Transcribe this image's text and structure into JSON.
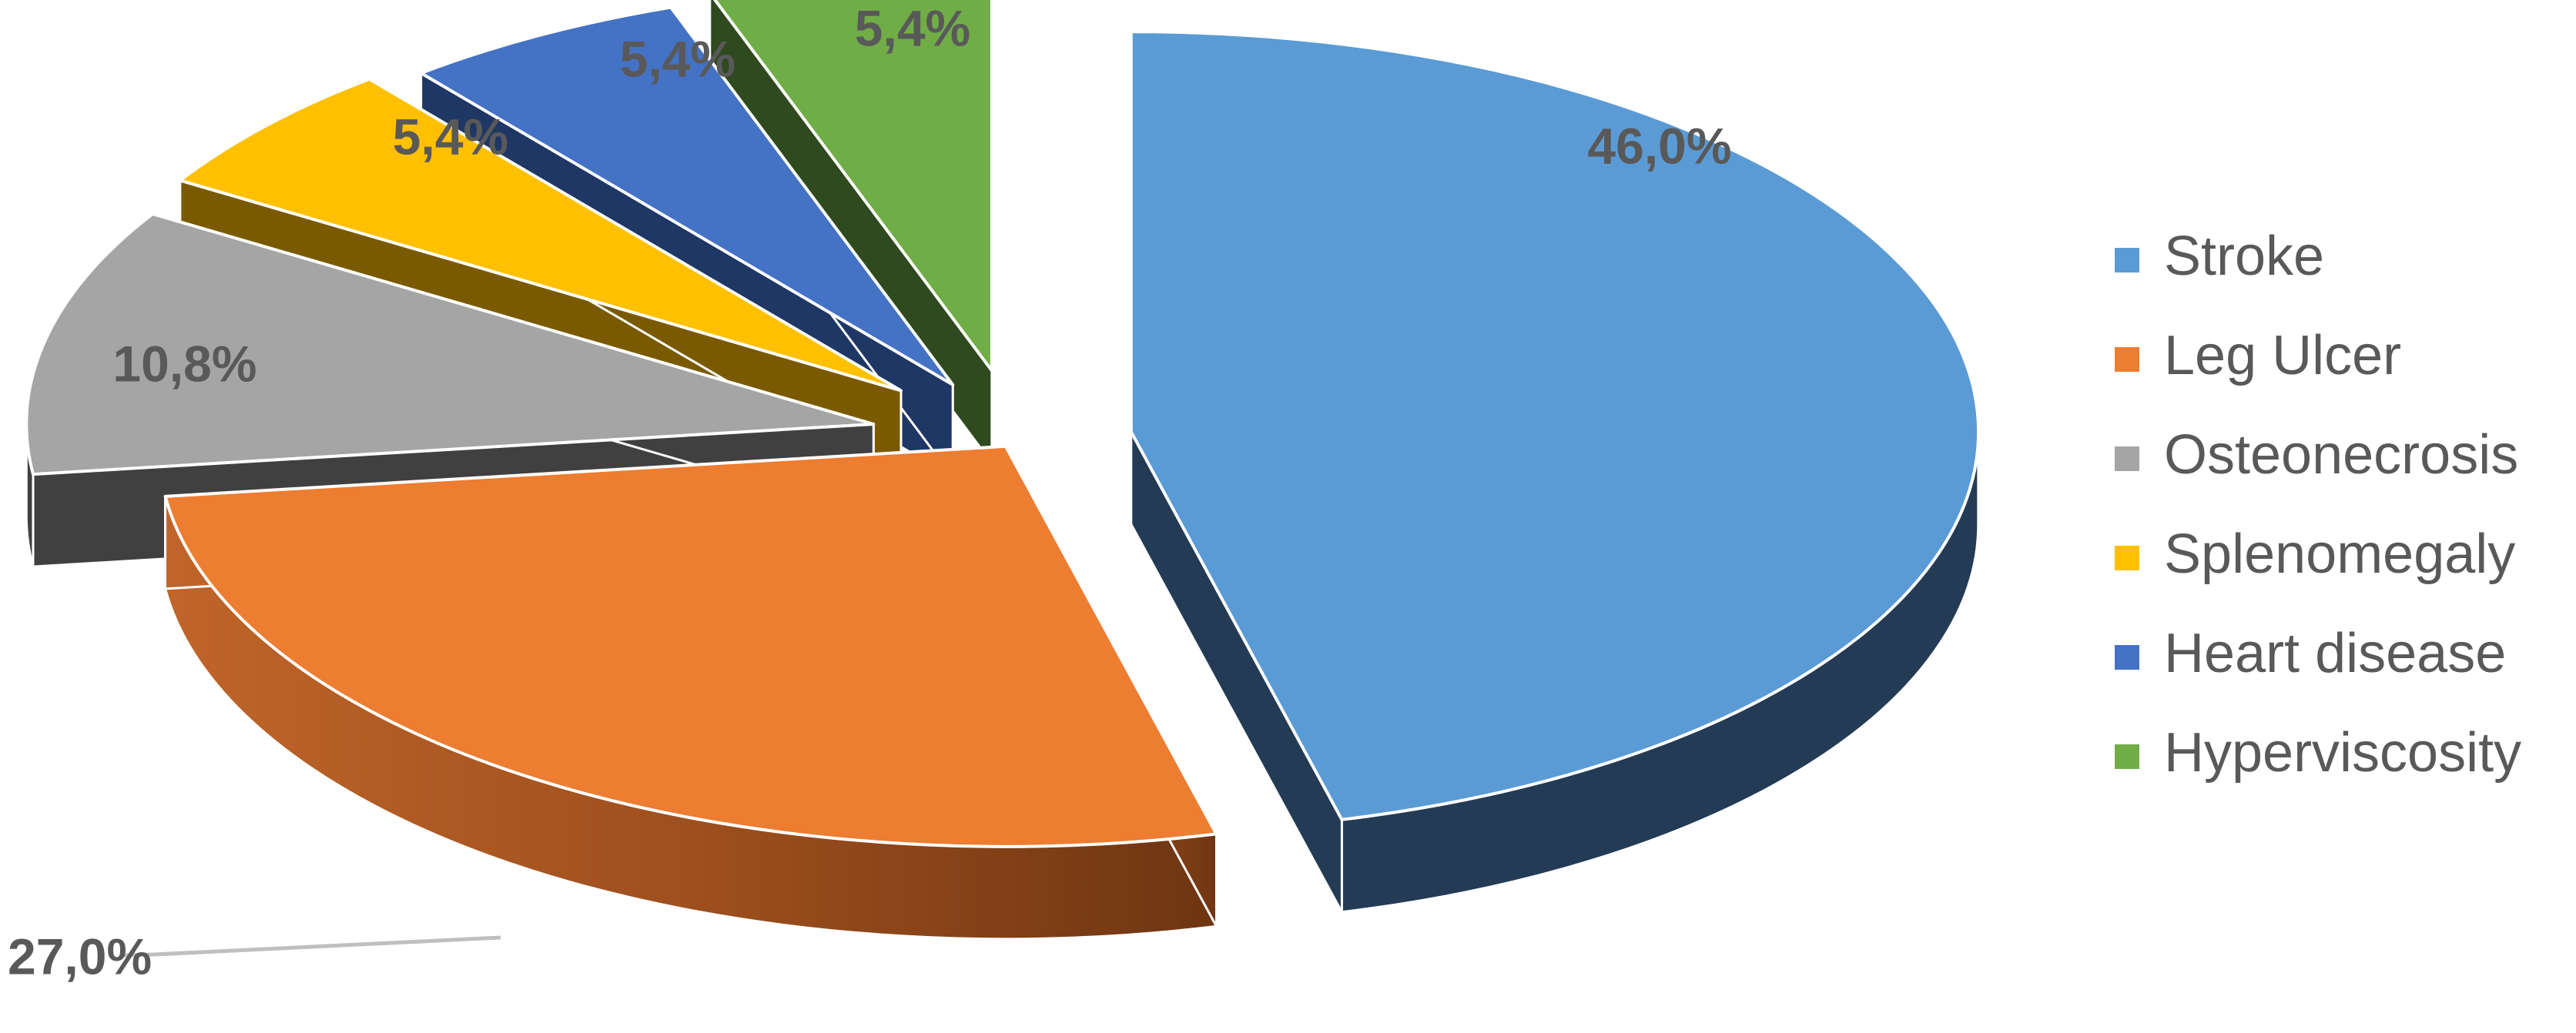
{
  "chart_data": {
    "type": "pie",
    "style": "3d-exploded",
    "categories": [
      "Stroke",
      "Leg Ulcer",
      "Osteonecrosis",
      "Splenomegaly",
      "Heart disease",
      "Hyperviscosity"
    ],
    "values": [
      46.0,
      27.0,
      10.8,
      5.4,
      5.4,
      5.4
    ],
    "labels": [
      "46,0%",
      "27,0%",
      "10,8%",
      "5,4%",
      "5,4%",
      "5,4%"
    ],
    "colors": [
      "#5B9BD5",
      "#ED7D31",
      "#A5A5A5",
      "#FFC000",
      "#4472C4",
      "#70AD47"
    ],
    "legend_position": "right",
    "title": ""
  }
}
